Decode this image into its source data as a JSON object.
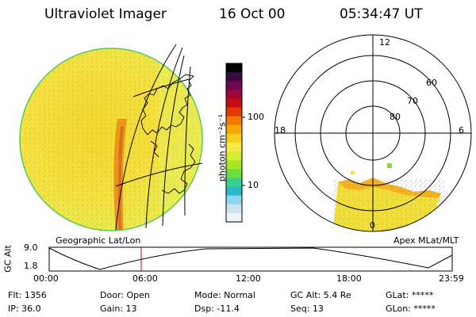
{
  "header": {
    "instrument": "Ultraviolet Imager",
    "date": "16 Oct 00",
    "time": "05:34:47 UT"
  },
  "colorbar": {
    "unit_label": "photon cm⁻²s⁻¹",
    "ticks": [
      "100",
      "10"
    ],
    "colors": [
      "#000000",
      "#3a0a3e",
      "#6d0850",
      "#9a0838",
      "#c80a12",
      "#e23a05",
      "#f07a05",
      "#f6a80a",
      "#f6cf1a",
      "#f4ea4a",
      "#d4ec32",
      "#a6e628",
      "#6cdc3c",
      "#38d08a",
      "#2ab8c8",
      "#8ad6ee",
      "#cde4ee",
      "#eef3f6"
    ]
  },
  "polar": {
    "hour_labels": {
      "top": "12",
      "left": "18",
      "right": "6",
      "bottom": "0"
    },
    "lat_labels": [
      "60",
      "70",
      "80"
    ]
  },
  "panel_labels": {
    "left": "Geographic Lat/Lon",
    "right": "Apex MLat/MLT"
  },
  "altitude_plot": {
    "axis_title": "GC Alt",
    "y_ticks": [
      "9.0",
      "1.8"
    ],
    "x_ticks": [
      "00:00",
      "06:00",
      "12:00",
      "18:00",
      "23:59"
    ],
    "marker_time": "05:34"
  },
  "info": {
    "flt": "Flt: 1356",
    "ip": "IP: 36.0",
    "door": "Door: Open",
    "gain": "Gain: 13",
    "mode": "Mode: Normal",
    "dsp": "Dsp:  -11.4",
    "gcalt": "GC Alt: 5.4 Re",
    "seq": "Seq: 13",
    "glat": "GLat: *****",
    "glon": "GLon: *****"
  }
}
